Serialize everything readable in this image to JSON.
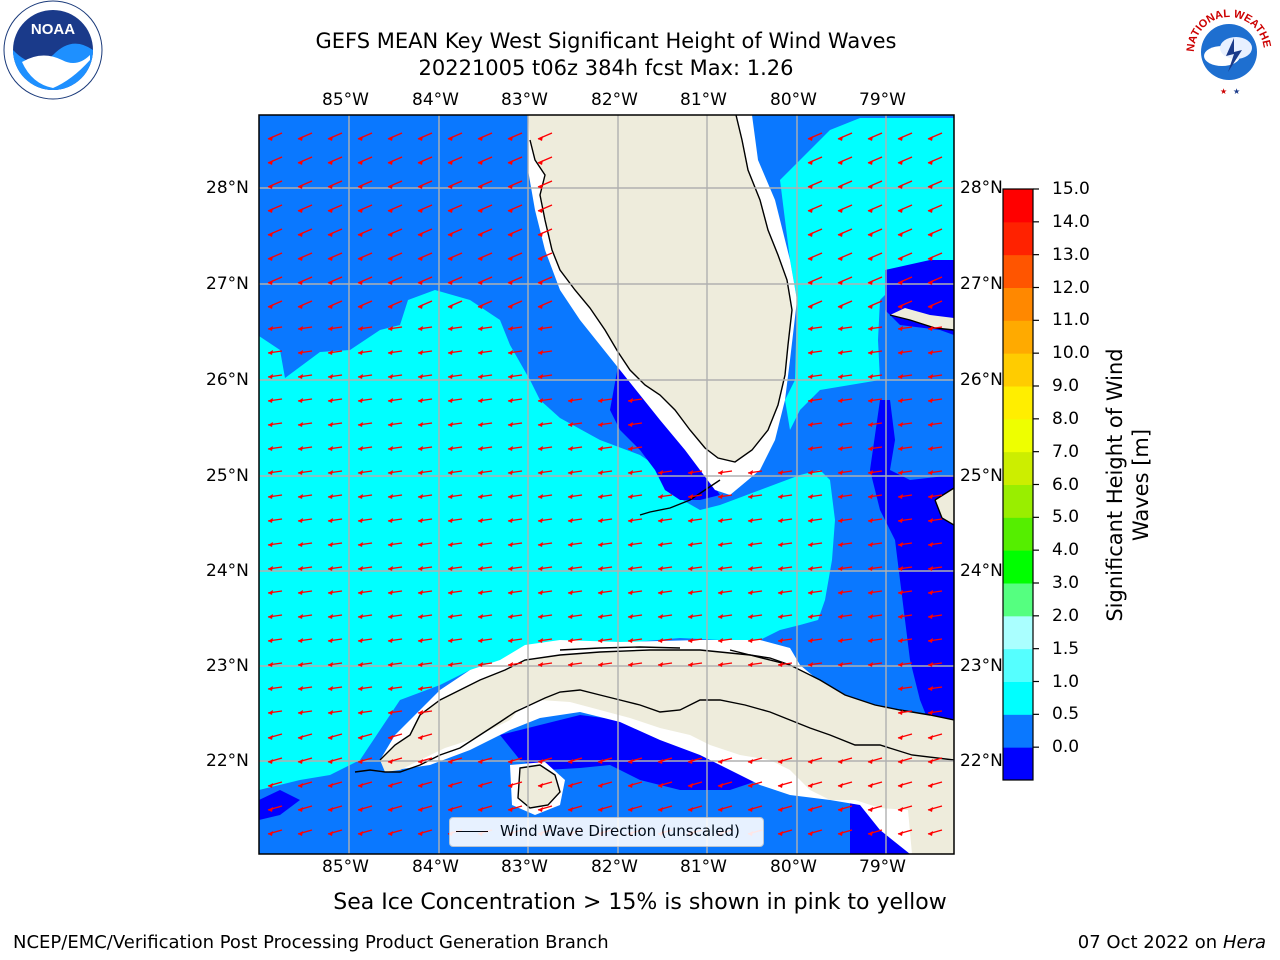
{
  "title": {
    "line1": "GEFS MEAN Key West Significant Height of Wind Waves",
    "line2": "20221005 t06z 384h fcst   Max: 1.26"
  },
  "map": {
    "lon_labels": [
      "85°W",
      "84°W",
      "83°W",
      "82°W",
      "81°W",
      "80°W",
      "79°W"
    ],
    "lat_labels": [
      "28°N",
      "27°N",
      "26°N",
      "25°N",
      "24°N",
      "23°N",
      "22°N"
    ],
    "legend_text": "Wind Wave Direction (unscaled)",
    "arrow_color": "#ff0000",
    "land_color": "#eeecdc",
    "region": "Florida Straits / Key West"
  },
  "colorbar": {
    "label_line1": "Significant Height of Wind",
    "label_line2": "Waves [m]",
    "ticks": [
      "15.0",
      "14.0",
      "13.0",
      "12.0",
      "11.0",
      "10.0",
      "9.0",
      "8.0",
      "7.0",
      "6.0",
      "5.0",
      "4.0",
      "3.0",
      "2.0",
      "1.5",
      "1.0",
      "0.5",
      "0.0"
    ],
    "colors_bottom_to_top": [
      "#0000ff",
      "#0a78ff",
      "#00ffff",
      "#55ffff",
      "#aaffff",
      "#55ff80",
      "#00ff00",
      "#55ee00",
      "#99ee00",
      "#ccee00",
      "#eeff00",
      "#ffee00",
      "#ffcc00",
      "#ffaa00",
      "#ff8800",
      "#ff5500",
      "#ff2200",
      "#ff0000"
    ]
  },
  "footer": {
    "ice_note": "Sea Ice Concentration > 15% is shown in pink to yellow",
    "credit": "NCEP/EMC/Verification Post Processing Product Generation Branch",
    "date": "07 Oct 2022 on ",
    "host": "Hera"
  },
  "logos": {
    "left": "NOAA",
    "right": "NATIONAL WEATHER SERVICE"
  }
}
